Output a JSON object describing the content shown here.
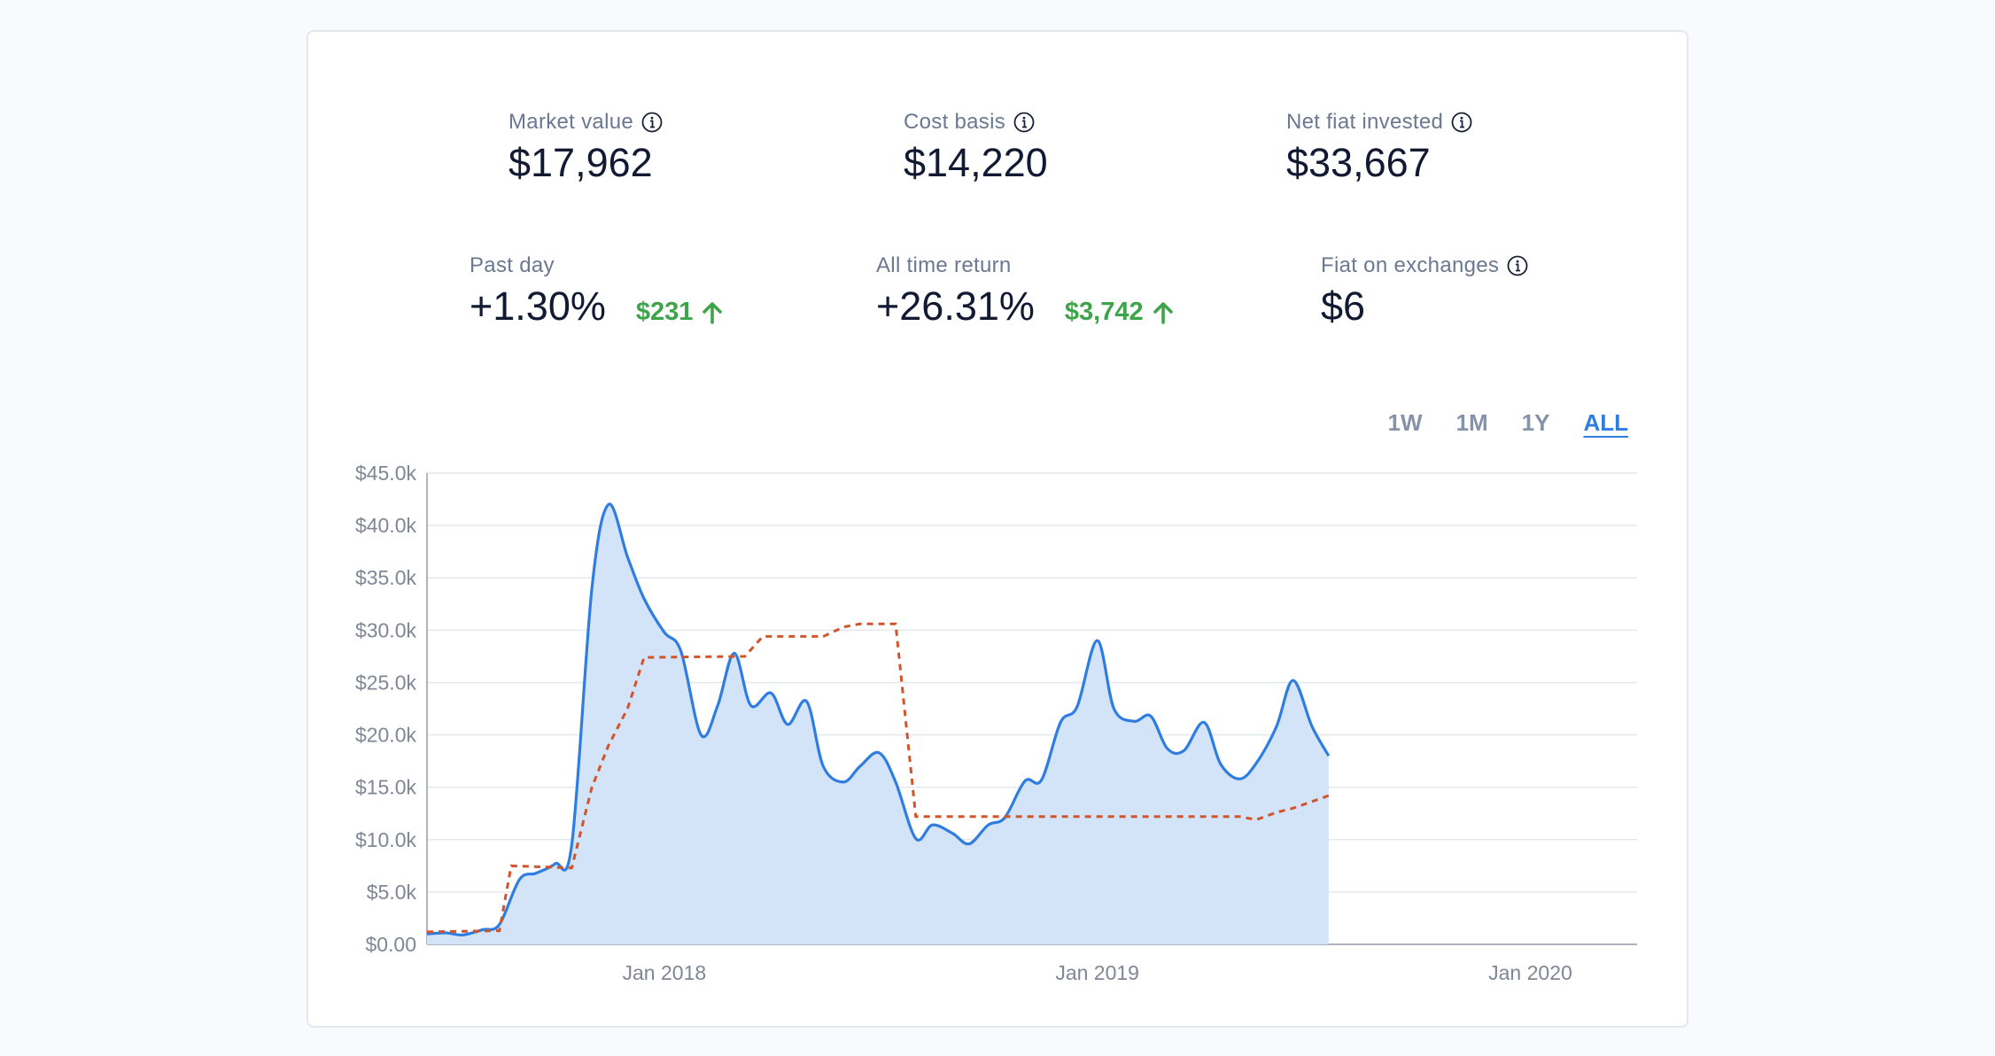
{
  "stats": {
    "market_value": {
      "label": "Market value",
      "value": "$17,962",
      "info_icon": "info-icon"
    },
    "cost_basis": {
      "label": "Cost basis",
      "value": "$14,220",
      "info_icon": "info-icon"
    },
    "net_fiat_invested": {
      "label": "Net fiat invested",
      "value": "$33,667",
      "info_icon": "info-icon"
    },
    "past_day": {
      "label": "Past day",
      "value": "+1.30%",
      "delta": "$231",
      "delta_icon": "arrow-up-icon"
    },
    "all_time_return": {
      "label": "All time return",
      "value": "+26.31%",
      "delta": "$3,742",
      "delta_icon": "arrow-up-icon"
    },
    "fiat_on_exchanges": {
      "label": "Fiat on exchanges",
      "value": "$6",
      "info_icon": "info-icon"
    }
  },
  "range_tabs": [
    {
      "label": "1W",
      "active": false
    },
    {
      "label": "1M",
      "active": false
    },
    {
      "label": "1Y",
      "active": false
    },
    {
      "label": "ALL",
      "active": true
    }
  ],
  "colors": {
    "market_line": "#2f7de1",
    "market_fill": "#d3e4f8",
    "cost_line": "#d2542a",
    "positive": "#3ea44a",
    "grid": "#e4e7ec",
    "axis": "#aeb4bd"
  },
  "chart_data": {
    "type": "area",
    "title": "",
    "xlabel": "",
    "ylabel": "",
    "ylim": [
      0,
      45000
    ],
    "xlim": [
      "2017-06-15",
      "2020-03-31"
    ],
    "y_ticks": [
      0,
      5000,
      10000,
      15000,
      20000,
      25000,
      30000,
      35000,
      40000,
      45000
    ],
    "y_tick_labels": [
      "$0.00",
      "$5.0k",
      "$10.0k",
      "$15.0k",
      "$20.0k",
      "$25.0k",
      "$30.0k",
      "$35.0k",
      "$40.0k",
      "$45.0k"
    ],
    "x_ticks": [
      "2018-01-01",
      "2019-01-01",
      "2020-01-01"
    ],
    "x_tick_labels": [
      "Jan 2018",
      "Jan 2019",
      "Jan 2020"
    ],
    "grid": true,
    "legend": "none",
    "series": [
      {
        "style": "solid-area",
        "points": [
          [
            "2017-06-15",
            1000
          ],
          [
            "2017-07-01",
            1100
          ],
          [
            "2017-07-15",
            900
          ],
          [
            "2017-08-01",
            1400
          ],
          [
            "2017-08-15",
            1900
          ],
          [
            "2017-09-01",
            6200
          ],
          [
            "2017-09-15",
            6800
          ],
          [
            "2017-10-01",
            7700
          ],
          [
            "2017-10-15",
            9500
          ],
          [
            "2017-11-01",
            34000
          ],
          [
            "2017-11-15",
            42000
          ],
          [
            "2017-12-01",
            37000
          ],
          [
            "2017-12-15",
            33000
          ],
          [
            "2018-01-01",
            29800
          ],
          [
            "2018-01-15",
            28000
          ],
          [
            "2018-02-01",
            20000
          ],
          [
            "2018-02-15",
            22800
          ],
          [
            "2018-03-01",
            27800
          ],
          [
            "2018-03-15",
            22800
          ],
          [
            "2018-04-01",
            24000
          ],
          [
            "2018-04-15",
            21000
          ],
          [
            "2018-05-01",
            23200
          ],
          [
            "2018-05-15",
            17000
          ],
          [
            "2018-06-01",
            15500
          ],
          [
            "2018-06-15",
            17000
          ],
          [
            "2018-07-01",
            18300
          ],
          [
            "2018-07-15",
            15500
          ],
          [
            "2018-08-01",
            10100
          ],
          [
            "2018-08-15",
            11400
          ],
          [
            "2018-09-01",
            10600
          ],
          [
            "2018-09-15",
            9600
          ],
          [
            "2018-10-01",
            11400
          ],
          [
            "2018-10-15",
            12100
          ],
          [
            "2018-11-01",
            15600
          ],
          [
            "2018-11-15",
            15700
          ],
          [
            "2018-12-01",
            21200
          ],
          [
            "2018-12-15",
            22700
          ],
          [
            "2019-01-01",
            29000
          ],
          [
            "2019-01-15",
            22500
          ],
          [
            "2019-02-01",
            21300
          ],
          [
            "2019-02-15",
            21800
          ],
          [
            "2019-03-01",
            18700
          ],
          [
            "2019-03-15",
            18500
          ],
          [
            "2019-04-01",
            21200
          ],
          [
            "2019-04-15",
            17200
          ],
          [
            "2019-05-01",
            15800
          ],
          [
            "2019-05-15",
            17300
          ],
          [
            "2019-06-01",
            20800
          ],
          [
            "2019-06-15",
            25200
          ],
          [
            "2019-07-01",
            20800
          ],
          [
            "2019-07-15",
            18000
          ]
        ]
      },
      {
        "style": "dashed",
        "points": [
          [
            "2017-06-15",
            1200
          ],
          [
            "2017-08-15",
            1300
          ],
          [
            "2017-08-25",
            7500
          ],
          [
            "2017-10-15",
            7300
          ],
          [
            "2017-11-01",
            15000
          ],
          [
            "2017-11-15",
            19000
          ],
          [
            "2017-12-01",
            22500
          ],
          [
            "2017-12-15",
            27400
          ],
          [
            "2018-03-10",
            27500
          ],
          [
            "2018-03-25",
            29400
          ],
          [
            "2018-05-15",
            29400
          ],
          [
            "2018-06-01",
            30300
          ],
          [
            "2018-06-15",
            30600
          ],
          [
            "2018-07-15",
            30600
          ],
          [
            "2018-08-01",
            12200
          ],
          [
            "2019-05-01",
            12200
          ],
          [
            "2019-05-15",
            11900
          ],
          [
            "2019-06-01",
            12600
          ],
          [
            "2019-06-15",
            13000
          ],
          [
            "2019-07-15",
            14200
          ]
        ]
      }
    ]
  }
}
